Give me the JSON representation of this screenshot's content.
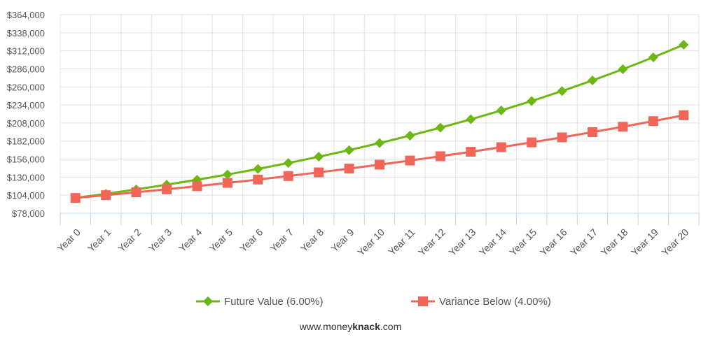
{
  "chart_data": {
    "type": "line",
    "categories": [
      "Year 0",
      "Year 1",
      "Year 2",
      "Year 3",
      "Year 4",
      "Year 5",
      "Year 6",
      "Year 7",
      "Year 8",
      "Year 9",
      "Year 10",
      "Year 11",
      "Year 12",
      "Year 13",
      "Year 14",
      "Year 15",
      "Year 16",
      "Year 17",
      "Year 18",
      "Year 19",
      "Year 20"
    ],
    "y_ticks": [
      "$78,000",
      "$104,000",
      "$130,000",
      "$156,000",
      "$182,000",
      "$208,000",
      "$234,000",
      "$260,000",
      "$286,000",
      "$312,000",
      "$338,000",
      "$364,000"
    ],
    "ylim": [
      78000,
      364000
    ],
    "grid": true,
    "legend_position": "bottom",
    "series": [
      {
        "name": "Future Value (6.00%)",
        "color": "#6db712",
        "marker": "diamond",
        "values": [
          100000,
          106000,
          112360,
          119102,
          126248,
          133823,
          141852,
          150363,
          159385,
          168948,
          179085,
          189830,
          201220,
          213293,
          226090,
          239656,
          254035,
          269277,
          285434,
          302560,
          320714
        ]
      },
      {
        "name": "Variance Below (4.00%)",
        "color": "#f2665a",
        "marker": "square",
        "values": [
          100000,
          104000,
          108160,
          112486,
          116986,
          121665,
          126532,
          131593,
          136857,
          142331,
          148024,
          153945,
          160103,
          166507,
          173168,
          180094,
          187298,
          194790,
          202582,
          210685,
          219112
        ]
      }
    ]
  },
  "footer": {
    "prefix": "www.money",
    "bold": "knack",
    "suffix": ".com"
  }
}
